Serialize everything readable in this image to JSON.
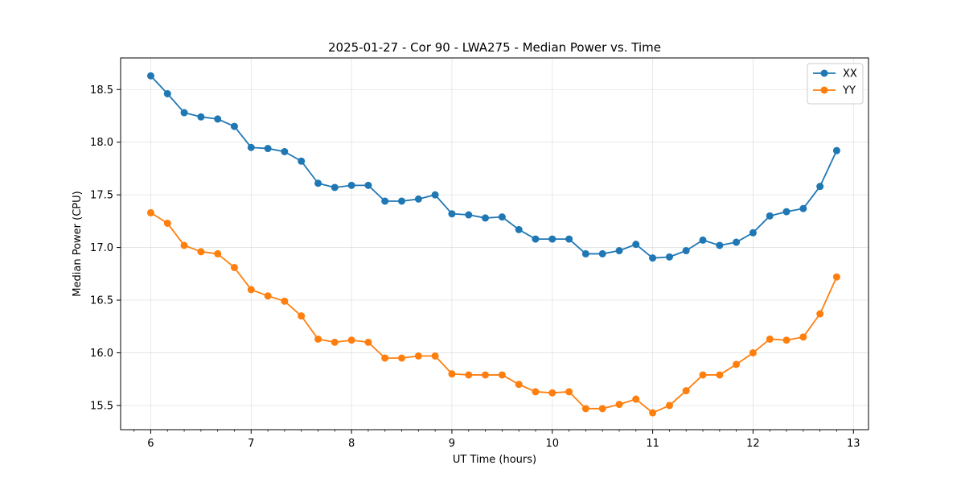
{
  "chart_data": {
    "type": "line",
    "title": "2025-01-27 - Cor 90 - LWA275 - Median Power vs. Time",
    "xlabel": "UT Time (hours)",
    "ylabel": "Median Power (CPU)",
    "xlim": [
      5.7,
      13.15
    ],
    "ylim": [
      15.27,
      18.8
    ],
    "xticks": [
      6,
      7,
      8,
      9,
      10,
      11,
      12,
      13
    ],
    "yticks": [
      15.5,
      16.0,
      16.5,
      17.0,
      17.5,
      18.0,
      18.5
    ],
    "xtick_labels": [
      "6",
      "7",
      "8",
      "9",
      "10",
      "11",
      "12",
      "13"
    ],
    "ytick_labels": [
      "15.5",
      "16.0",
      "16.5",
      "17.0",
      "17.5",
      "18.0",
      "18.5"
    ],
    "grid": true,
    "legend_position": "top-right",
    "x": [
      6.0,
      6.167,
      6.333,
      6.5,
      6.667,
      6.833,
      7.0,
      7.167,
      7.333,
      7.5,
      7.667,
      7.833,
      8.0,
      8.167,
      8.333,
      8.5,
      8.667,
      8.833,
      9.0,
      9.167,
      9.333,
      9.5,
      9.667,
      9.833,
      10.0,
      10.167,
      10.333,
      10.5,
      10.667,
      10.833,
      11.0,
      11.167,
      11.333,
      11.5,
      11.667,
      11.833,
      12.0,
      12.167,
      12.333,
      12.5,
      12.667,
      12.833
    ],
    "series": [
      {
        "name": "XX",
        "color": "#1f77b4",
        "values": [
          18.63,
          18.46,
          18.28,
          18.24,
          18.22,
          18.15,
          17.95,
          17.94,
          17.91,
          17.82,
          17.61,
          17.57,
          17.59,
          17.59,
          17.44,
          17.44,
          17.46,
          17.5,
          17.32,
          17.31,
          17.28,
          17.29,
          17.17,
          17.08,
          17.08,
          17.08,
          16.94,
          16.94,
          16.97,
          17.03,
          16.9,
          16.91,
          16.97,
          17.07,
          17.02,
          17.05,
          17.14,
          17.3,
          17.34,
          17.37,
          17.58,
          17.92
        ]
      },
      {
        "name": "YY",
        "color": "#ff7f0e",
        "values": [
          17.33,
          17.23,
          17.02,
          16.96,
          16.94,
          16.81,
          16.6,
          16.54,
          16.49,
          16.35,
          16.13,
          16.1,
          16.12,
          16.1,
          15.95,
          15.95,
          15.97,
          15.97,
          15.8,
          15.79,
          15.79,
          15.79,
          15.7,
          15.63,
          15.62,
          15.63,
          15.47,
          15.47,
          15.51,
          15.56,
          15.43,
          15.5,
          15.64,
          15.79,
          15.79,
          15.89,
          16.0,
          16.13,
          16.12,
          16.15,
          16.37,
          16.72
        ]
      }
    ]
  }
}
